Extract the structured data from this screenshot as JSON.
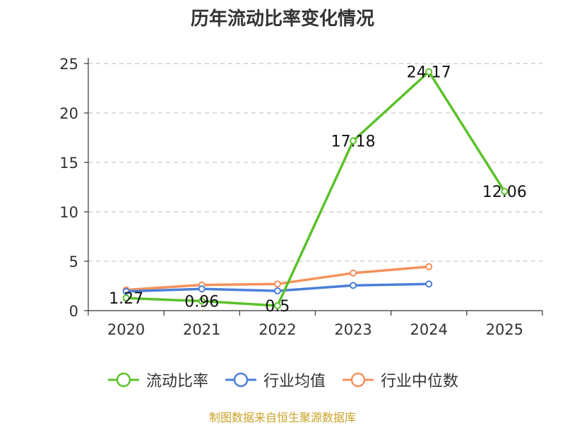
{
  "chart_data": {
    "type": "line",
    "title": "历年流动比率变化情况",
    "categories": [
      "2020",
      "2021",
      "2022",
      "2023",
      "2024",
      "2025"
    ],
    "y_ticks": [
      "0",
      "5",
      "10",
      "15",
      "20",
      "25"
    ],
    "ylim": [
      0,
      25
    ],
    "grid": true,
    "legend_position": "bottom",
    "series": [
      {
        "name": "流动比率",
        "color": "#5bc12a",
        "values": [
          1.27,
          0.96,
          0.5,
          17.18,
          24.17,
          12.06
        ],
        "labels": [
          "1.27",
          "0.96",
          "0.5",
          "17.18",
          "24.17",
          "12.06"
        ]
      },
      {
        "name": "行业均值",
        "color": "#4a7fd9",
        "values": [
          1.95,
          2.2,
          2.0,
          2.55,
          2.7,
          null
        ]
      },
      {
        "name": "行业中位数",
        "color": "#f5915c",
        "values": [
          2.1,
          2.6,
          2.7,
          3.8,
          4.45,
          null
        ]
      }
    ]
  },
  "footer": {
    "source": "制图数据来自恒生聚源数据库"
  }
}
